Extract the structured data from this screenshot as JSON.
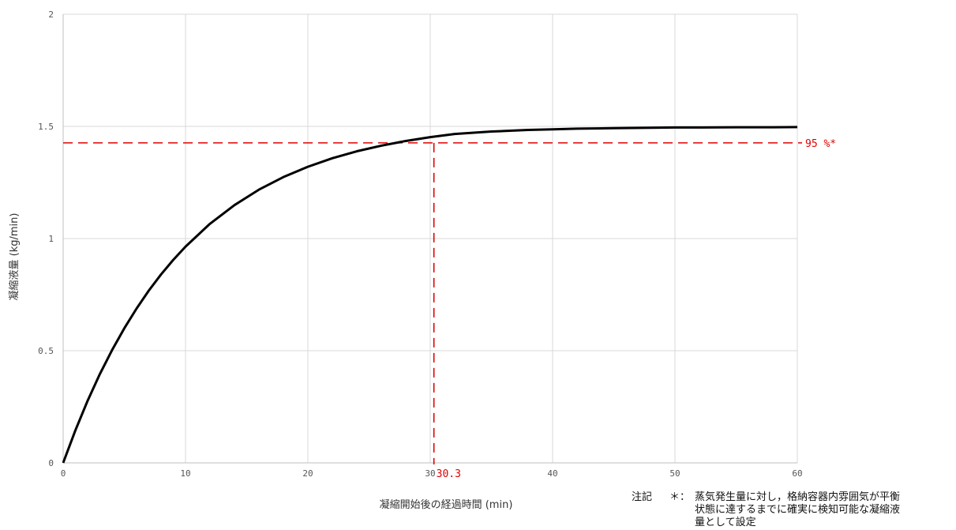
{
  "chart_data": {
    "type": "line",
    "title": "",
    "xlabel": "凝縮開始後の経過時間 (min)",
    "ylabel": "凝縮液量 (kg/min)",
    "xlim": [
      0,
      60
    ],
    "ylim": [
      0,
      2
    ],
    "x_ticks": [
      0,
      10,
      20,
      30,
      40,
      50,
      60
    ],
    "x_tick_labels": [
      "0",
      "10",
      "20",
      "30",
      "40",
      "50",
      "60"
    ],
    "y_ticks": [
      0,
      0.5,
      1,
      1.5,
      2
    ],
    "y_tick_labels": [
      "0",
      "0.5",
      "1",
      "1.5",
      "2"
    ],
    "grid": true,
    "series": [
      {
        "color": "#000000",
        "x": [
          0,
          1,
          2,
          3,
          4,
          5,
          6,
          7,
          8,
          9,
          10,
          12,
          14,
          16,
          18,
          20,
          22,
          24,
          26,
          28,
          30,
          32,
          35,
          38,
          40,
          42,
          45,
          48,
          50,
          52,
          55,
          58,
          60
        ],
        "y": [
          0,
          0.145,
          0.277,
          0.396,
          0.503,
          0.6,
          0.688,
          0.768,
          0.84,
          0.905,
          0.964,
          1.066,
          1.149,
          1.218,
          1.274,
          1.32,
          1.358,
          1.389,
          1.414,
          1.435,
          1.452,
          1.466,
          1.477,
          1.484,
          1.487,
          1.49,
          1.492,
          1.494,
          1.495,
          1.495,
          1.496,
          1.496,
          1.497
        ]
      }
    ],
    "reference_lines": {
      "color": "#e00000",
      "horizontal_y": 1.4265,
      "horizontal_label": "95 %*",
      "vertical_x": 30.3,
      "vertical_label": "30.3"
    }
  },
  "notes": {
    "heading": "注記",
    "marker": "＊：",
    "lines": [
      "蒸気発生量に対し，格納容器内雰囲気が平衡",
      "状態に達するまでに確実に検知可能な凝縮液",
      "量として設定"
    ]
  }
}
